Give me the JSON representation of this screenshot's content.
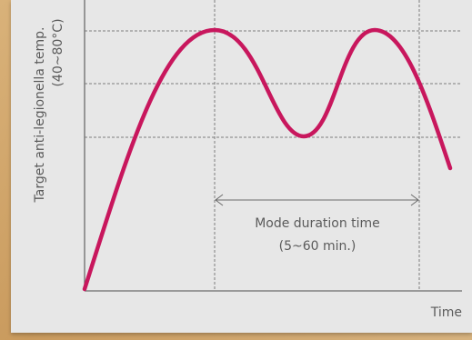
{
  "chart_data": {
    "type": "line",
    "title": "",
    "ylabel_line1": "Target anti-legionella temp.",
    "ylabel_line2": "(40~80°C)",
    "xlabel": "Time",
    "annotation": {
      "line1": "Mode duration time",
      "line2": "(5~60 min.)"
    },
    "grid": true,
    "colors": {
      "curve": "#c8175d",
      "axis": "#6b6b6b",
      "grid": "#7d7d7d",
      "text": "#5b5b5b"
    }
  }
}
